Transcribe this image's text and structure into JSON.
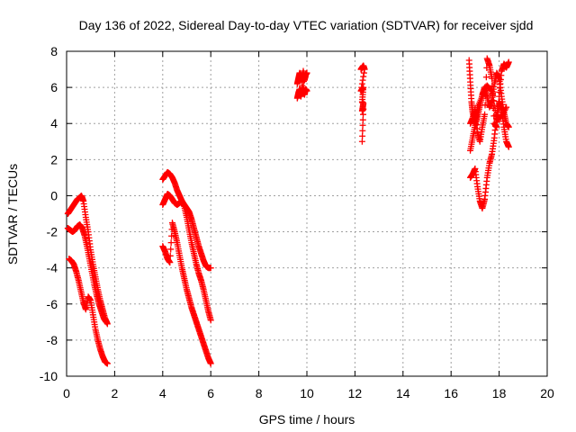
{
  "chart_data": {
    "type": "scatter",
    "title": "Day 136 of 2022, Sidereal Day-to-day VTEC variation (SDTVAR) for receiver sjdd",
    "xlabel": "GPS time / hours",
    "ylabel": "SDTVAR / TECUs",
    "xlim": [
      0,
      20
    ],
    "ylim": [
      -10,
      8
    ],
    "xticks": [
      0,
      2,
      4,
      6,
      8,
      10,
      12,
      14,
      16,
      18,
      20
    ],
    "yticks": [
      -10,
      -8,
      -6,
      -4,
      -2,
      0,
      2,
      4,
      6,
      8
    ],
    "grid": true,
    "marker": "+",
    "color": "#ff0000",
    "series": [
      {
        "name": "arc1",
        "x": [
          0.05,
          0.15,
          0.25,
          0.35,
          0.45,
          0.55,
          0.62,
          0.7,
          0.8,
          0.9,
          1.0,
          1.1,
          1.2,
          1.3,
          1.4,
          1.5,
          1.6,
          1.7
        ],
        "y": [
          -1.0,
          -0.8,
          -0.6,
          -0.4,
          -0.2,
          -0.1,
          0.0,
          -0.3,
          -1.2,
          -2.0,
          -3.0,
          -3.8,
          -4.5,
          -5.2,
          -5.8,
          -6.3,
          -6.8,
          -7.1
        ]
      },
      {
        "name": "arc2",
        "x": [
          0.05,
          0.15,
          0.25,
          0.35,
          0.45,
          0.55,
          0.65,
          0.75,
          0.85,
          0.95,
          1.05,
          1.15,
          1.25,
          1.35,
          1.45,
          1.55,
          1.65
        ],
        "y": [
          -1.8,
          -1.9,
          -2.0,
          -1.9,
          -1.7,
          -1.6,
          -1.8,
          -2.2,
          -2.8,
          -3.5,
          -4.2,
          -4.9,
          -5.5,
          -6.0,
          -6.4,
          -6.8,
          -7.0
        ]
      },
      {
        "name": "arc3",
        "x": [
          0.1,
          0.2,
          0.3,
          0.4,
          0.5,
          0.6,
          0.7,
          0.8,
          0.9,
          1.0,
          1.1,
          1.2,
          1.3,
          1.4,
          1.5,
          1.6,
          1.7
        ],
        "y": [
          -3.5,
          -3.6,
          -3.8,
          -4.2,
          -4.7,
          -5.3,
          -5.9,
          -6.3,
          -5.6,
          -5.8,
          -6.6,
          -7.4,
          -8.0,
          -8.5,
          -8.9,
          -9.2,
          -9.3
        ]
      },
      {
        "name": "arc4",
        "x": [
          4.0,
          4.1,
          4.2,
          4.3,
          4.4,
          4.5,
          4.6,
          4.7,
          4.8,
          4.9,
          5.0,
          5.1,
          5.2,
          5.3,
          5.4,
          5.5,
          5.6,
          5.7,
          5.8,
          5.9,
          6.0
        ],
        "y": [
          0.9,
          1.1,
          1.3,
          1.2,
          1.0,
          0.7,
          0.3,
          0.0,
          -0.3,
          -0.5,
          -0.7,
          -0.9,
          -1.3,
          -1.8,
          -2.3,
          -2.8,
          -3.2,
          -3.6,
          -3.9,
          -4.0,
          -4.0
        ]
      },
      {
        "name": "arc5",
        "x": [
          4.0,
          4.1,
          4.2,
          4.3,
          4.4,
          4.5,
          4.6,
          4.7,
          4.8,
          4.9,
          5.0,
          5.1,
          5.2,
          5.3,
          5.4,
          5.5,
          5.6,
          5.7,
          5.8,
          5.9,
          6.0
        ],
        "y": [
          -0.5,
          -0.2,
          0.1,
          0.0,
          -0.2,
          -0.4,
          -0.5,
          -0.4,
          -0.3,
          -0.6,
          -1.2,
          -1.9,
          -2.6,
          -3.2,
          -3.8,
          -4.3,
          -4.7,
          -5.2,
          -5.8,
          -6.4,
          -6.9
        ]
      },
      {
        "name": "arc6",
        "x": [
          4.0,
          4.1,
          4.2,
          4.3,
          4.4,
          4.5,
          4.6,
          4.7,
          4.8,
          4.9,
          5.0,
          5.1,
          5.2,
          5.3,
          5.4,
          5.5,
          5.6,
          5.7,
          5.8,
          5.9,
          6.0
        ],
        "y": [
          -2.8,
          -3.1,
          -3.5,
          -3.7,
          -1.5,
          -2.0,
          -2.6,
          -3.3,
          -4.0,
          -4.6,
          -5.2,
          -5.7,
          -6.2,
          -6.6,
          -7.0,
          -7.4,
          -7.8,
          -8.2,
          -8.6,
          -9.0,
          -9.3
        ]
      },
      {
        "name": "arc7",
        "x": [
          9.6,
          9.65,
          9.7,
          9.75,
          9.8,
          9.85,
          9.9,
          9.95,
          10.0,
          9.6,
          9.65,
          9.7,
          9.75,
          9.8,
          9.85,
          9.9,
          9.95,
          10.0
        ],
        "y": [
          6.2,
          6.5,
          6.8,
          6.6,
          6.3,
          6.9,
          6.4,
          6.7,
          6.8,
          5.4,
          5.7,
          5.9,
          5.5,
          5.8,
          6.0,
          5.6,
          5.9,
          5.8
        ]
      },
      {
        "name": "arc8",
        "x": [
          12.25,
          12.3,
          12.35,
          12.4,
          12.25,
          12.3,
          12.35,
          12.3,
          12.35,
          12.3,
          12.35,
          12.3
        ],
        "y": [
          7.0,
          7.1,
          7.2,
          7.0,
          5.8,
          5.9,
          6.0,
          5.2,
          5.1,
          4.7,
          4.8,
          3.0
        ]
      },
      {
        "name": "arc9",
        "x": [
          16.8,
          16.9,
          17.0,
          17.1,
          17.2,
          17.3,
          17.4,
          17.5,
          17.6,
          17.7,
          17.8,
          17.9,
          18.0,
          18.1,
          18.2,
          18.3,
          18.4
        ],
        "y": [
          1.0,
          1.2,
          1.5,
          0.5,
          -0.3,
          -0.7,
          -0.2,
          1.0,
          1.8,
          2.3,
          3.2,
          4.5,
          5.2,
          4.8,
          3.8,
          3.0,
          2.7
        ]
      },
      {
        "name": "arc10",
        "x": [
          16.8,
          16.9,
          17.0,
          17.1,
          17.2,
          17.3,
          17.4,
          17.5,
          17.6,
          17.7,
          17.8,
          17.9,
          18.0,
          18.1,
          18.2,
          18.3,
          18.4
        ],
        "y": [
          2.5,
          3.2,
          3.9,
          4.4,
          5.0,
          5.6,
          6.0,
          5.5,
          4.9,
          5.3,
          6.2,
          6.8,
          6.5,
          5.5,
          4.6,
          4.0,
          3.8
        ]
      },
      {
        "name": "arc11",
        "x": [
          16.8,
          16.9,
          17.0,
          17.1,
          17.2,
          17.3,
          17.4,
          17.5,
          17.6,
          17.7,
          17.8,
          17.9,
          18.0,
          18.1,
          18.2,
          18.3,
          18.4
        ],
        "y": [
          4.0,
          4.3,
          4.8,
          3.5,
          3.0,
          3.8,
          4.5,
          7.6,
          7.2,
          6.5,
          4.0,
          3.8,
          5.5,
          6.9,
          7.3,
          7.1,
          7.4
        ]
      },
      {
        "name": "arc12",
        "x": [
          16.75,
          16.8,
          16.85,
          16.9,
          17.0,
          17.1,
          17.3,
          17.5,
          17.7,
          17.9,
          18.1,
          18.3
        ],
        "y": [
          7.5,
          6.3,
          5.2,
          4.6,
          4.0,
          4.9,
          5.5,
          6.1,
          5.8,
          4.2,
          4.4,
          4.9
        ]
      }
    ]
  }
}
